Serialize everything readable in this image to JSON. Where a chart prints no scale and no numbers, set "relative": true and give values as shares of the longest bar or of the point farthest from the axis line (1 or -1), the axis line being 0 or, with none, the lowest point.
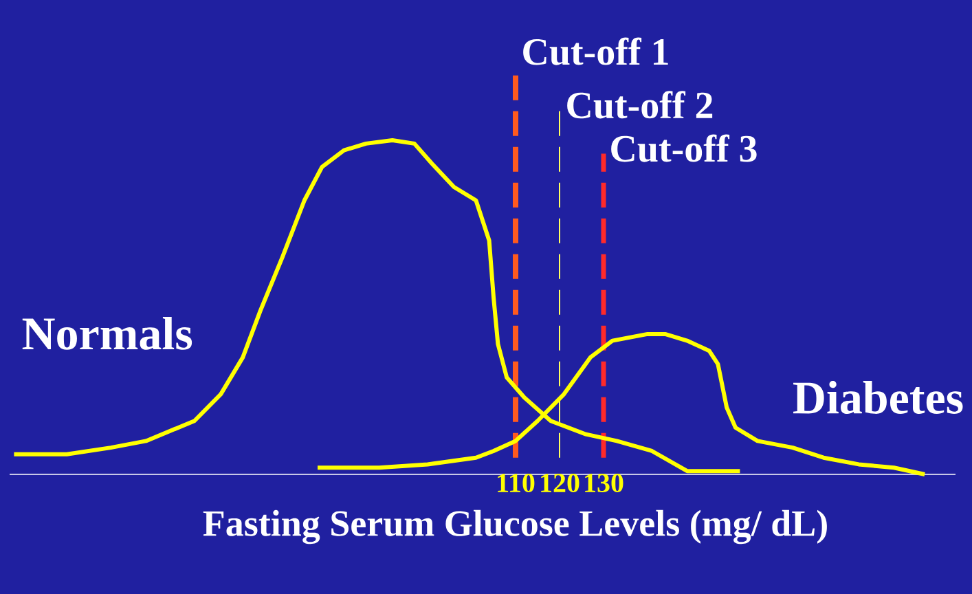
{
  "chart_data": {
    "type": "line",
    "relative": true,
    "xlabel": "Fasting Serum Glucose Levels (mg/ dL)",
    "xlim": [
      -5,
      210
    ],
    "xticks": [
      110,
      120,
      130
    ],
    "series": [
      {
        "name": "Normals",
        "color": "#ffff00",
        "x": [
          -4,
          8,
          18,
          26,
          37,
          43,
          48,
          52,
          57,
          62,
          66,
          71,
          76,
          82,
          87,
          91,
          96,
          101,
          104,
          105,
          106,
          108,
          112,
          118,
          126,
          133,
          141,
          149,
          161
        ],
        "values": [
          0.06,
          0.06,
          0.08,
          0.1,
          0.16,
          0.24,
          0.35,
          0.49,
          0.65,
          0.82,
          0.92,
          0.97,
          0.99,
          1,
          0.99,
          0.93,
          0.86,
          0.82,
          0.7,
          0.53,
          0.39,
          0.29,
          0.23,
          0.16,
          0.12,
          0.1,
          0.07,
          0.01,
          0.01
        ]
      },
      {
        "name": "Diabetes",
        "color": "#ffff00",
        "x": [
          65,
          79,
          90,
          101,
          105,
          110,
          115,
          121,
          127,
          132,
          140,
          144,
          149,
          154,
          156,
          158,
          160,
          165,
          173,
          180,
          188,
          196,
          203
        ],
        "values": [
          0.02,
          0.02,
          0.03,
          0.05,
          0.07,
          0.1,
          0.16,
          0.24,
          0.35,
          0.4,
          0.42,
          0.42,
          0.4,
          0.37,
          0.33,
          0.2,
          0.14,
          0.1,
          0.08,
          0.05,
          0.03,
          0.02,
          0
        ]
      }
    ],
    "ref_lines": [
      {
        "axis": "x",
        "value": 110,
        "label": "Cut-off 1",
        "color": "#ff5a1e",
        "line_style": "dashed"
      },
      {
        "axis": "x",
        "value": 120,
        "label": "Cut-off 2",
        "color": "#ffff60",
        "line_style": "dashed"
      },
      {
        "axis": "x",
        "value": 130,
        "label": "Cut-off 3",
        "color": "#ff2a2a",
        "line_style": "dashed"
      }
    ]
  }
}
